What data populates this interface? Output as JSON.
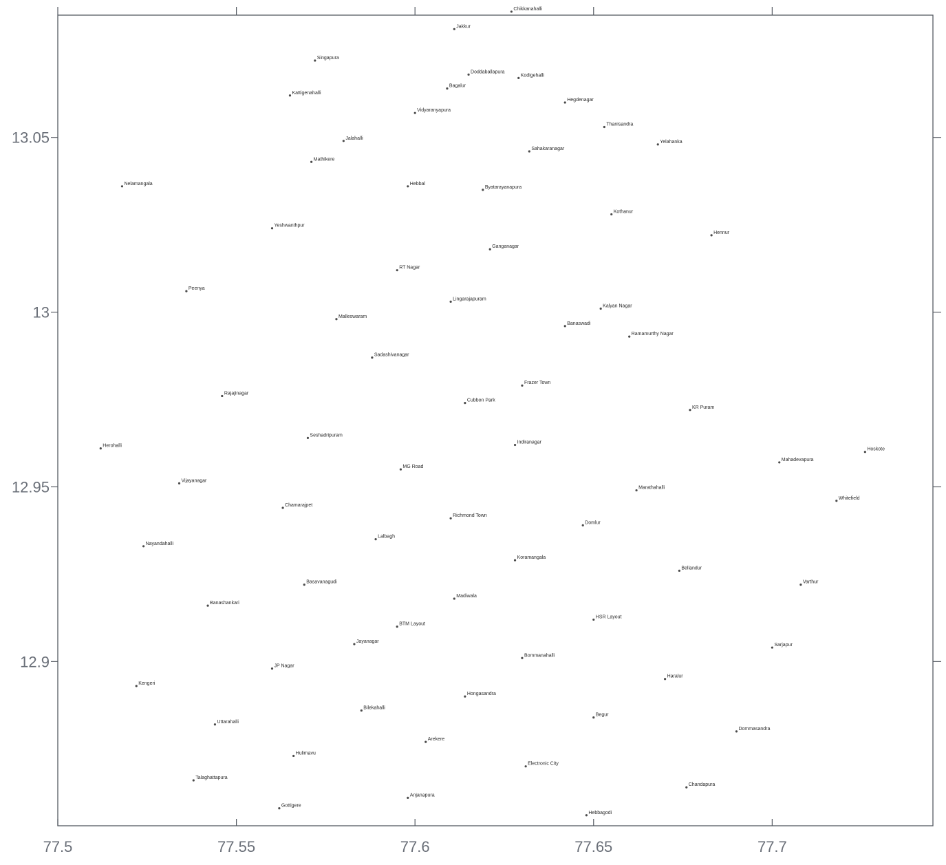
{
  "chart_data": {
    "type": "scatter",
    "title": "",
    "xlabel": "",
    "ylabel": "",
    "xlim": [
      77.5,
      77.745
    ],
    "ylim": [
      12.853,
      13.085
    ],
    "x_ticks": [
      77.5,
      77.55,
      77.6,
      77.65,
      77.7
    ],
    "x_tick_labels": [
      "77.5",
      "77.55",
      "77.6",
      "77.65",
      "77.7"
    ],
    "y_ticks": [
      12.9,
      12.95,
      13.0,
      13.05
    ],
    "y_tick_labels": [
      "12.9",
      "12.95",
      "13",
      "13.05"
    ],
    "grid": false,
    "legend": "none",
    "points": [
      {
        "x": 77.627,
        "y": 13.086,
        "label": "Chikkanahalli"
      },
      {
        "x": 77.611,
        "y": 13.081,
        "label": "Jakkur"
      },
      {
        "x": 77.572,
        "y": 13.072,
        "label": "Singapura"
      },
      {
        "x": 77.615,
        "y": 13.068,
        "label": "Doddaballapura"
      },
      {
        "x": 77.609,
        "y": 13.064,
        "label": "Bagalur"
      },
      {
        "x": 77.629,
        "y": 13.067,
        "label": "Kodigehalli"
      },
      {
        "x": 77.565,
        "y": 13.062,
        "label": "Kattigenahalli"
      },
      {
        "x": 77.642,
        "y": 13.06,
        "label": "Hegdenagar"
      },
      {
        "x": 77.6,
        "y": 13.057,
        "label": "Vidyaranyapura"
      },
      {
        "x": 77.653,
        "y": 13.053,
        "label": "Thanisandra"
      },
      {
        "x": 77.668,
        "y": 13.048,
        "label": "Yelahanka"
      },
      {
        "x": 77.58,
        "y": 13.049,
        "label": "Jalahalli"
      },
      {
        "x": 77.632,
        "y": 13.046,
        "label": "Sahakaranagar"
      },
      {
        "x": 77.571,
        "y": 13.043,
        "label": "Mathikere"
      },
      {
        "x": 77.598,
        "y": 13.036,
        "label": "Hebbal"
      },
      {
        "x": 77.619,
        "y": 13.035,
        "label": "Byatarayanapura"
      },
      {
        "x": 77.655,
        "y": 13.028,
        "label": "Kothanur"
      },
      {
        "x": 77.683,
        "y": 13.022,
        "label": "Hennur"
      },
      {
        "x": 77.56,
        "y": 13.024,
        "label": "Yeshwanthpur"
      },
      {
        "x": 77.621,
        "y": 13.018,
        "label": "Ganganagar"
      },
      {
        "x": 77.595,
        "y": 13.012,
        "label": "RT Nagar"
      },
      {
        "x": 77.536,
        "y": 13.006,
        "label": "Peenya"
      },
      {
        "x": 77.61,
        "y": 13.003,
        "label": "Lingarajapuram"
      },
      {
        "x": 77.652,
        "y": 13.001,
        "label": "Kalyan Nagar"
      },
      {
        "x": 77.578,
        "y": 12.998,
        "label": "Malleswaram"
      },
      {
        "x": 77.642,
        "y": 12.996,
        "label": "Banaswadi"
      },
      {
        "x": 77.66,
        "y": 12.993,
        "label": "Ramamurthy Nagar"
      },
      {
        "x": 77.588,
        "y": 12.987,
        "label": "Sadashivanagar"
      },
      {
        "x": 77.63,
        "y": 12.979,
        "label": "Frazer Town"
      },
      {
        "x": 77.546,
        "y": 12.976,
        "label": "Rajajinagar"
      },
      {
        "x": 77.614,
        "y": 12.974,
        "label": "Cubbon Park"
      },
      {
        "x": 77.677,
        "y": 12.972,
        "label": "KR Puram"
      },
      {
        "x": 77.57,
        "y": 12.964,
        "label": "Seshadripuram"
      },
      {
        "x": 77.628,
        "y": 12.962,
        "label": "Indiranagar"
      },
      {
        "x": 77.702,
        "y": 12.957,
        "label": "Mahadevapura"
      },
      {
        "x": 77.596,
        "y": 12.955,
        "label": "MG Road"
      },
      {
        "x": 77.534,
        "y": 12.951,
        "label": "Vijayanagar"
      },
      {
        "x": 77.662,
        "y": 12.949,
        "label": "Marathahalli"
      },
      {
        "x": 77.718,
        "y": 12.946,
        "label": "Whitefield"
      },
      {
        "x": 77.563,
        "y": 12.944,
        "label": "Chamarajpet"
      },
      {
        "x": 77.61,
        "y": 12.941,
        "label": "Richmond Town"
      },
      {
        "x": 77.647,
        "y": 12.939,
        "label": "Domlur"
      },
      {
        "x": 77.589,
        "y": 12.935,
        "label": "Lalbagh"
      },
      {
        "x": 77.524,
        "y": 12.933,
        "label": "Nayandahalli"
      },
      {
        "x": 77.628,
        "y": 12.929,
        "label": "Koramangala"
      },
      {
        "x": 77.674,
        "y": 12.926,
        "label": "Bellandur"
      },
      {
        "x": 77.569,
        "y": 12.922,
        "label": "Basavanagudi"
      },
      {
        "x": 77.611,
        "y": 12.918,
        "label": "Madiwala"
      },
      {
        "x": 77.542,
        "y": 12.916,
        "label": "Banashankari"
      },
      {
        "x": 77.65,
        "y": 12.912,
        "label": "HSR Layout"
      },
      {
        "x": 77.595,
        "y": 12.91,
        "label": "BTM Layout"
      },
      {
        "x": 77.583,
        "y": 12.905,
        "label": "Jayanagar"
      },
      {
        "x": 77.7,
        "y": 12.904,
        "label": "Sarjapur"
      },
      {
        "x": 77.63,
        "y": 12.901,
        "label": "Bommanahalli"
      },
      {
        "x": 77.56,
        "y": 12.898,
        "label": "JP Nagar"
      },
      {
        "x": 77.67,
        "y": 12.895,
        "label": "Haralur"
      },
      {
        "x": 77.522,
        "y": 12.893,
        "label": "Kengeri"
      },
      {
        "x": 77.614,
        "y": 12.89,
        "label": "Hongasandra"
      },
      {
        "x": 77.585,
        "y": 12.886,
        "label": "Bilekahalli"
      },
      {
        "x": 77.65,
        "y": 12.884,
        "label": "Begur"
      },
      {
        "x": 77.544,
        "y": 12.882,
        "label": "Uttarahalli"
      },
      {
        "x": 77.69,
        "y": 12.88,
        "label": "Dommasandra"
      },
      {
        "x": 77.603,
        "y": 12.877,
        "label": "Arekere"
      },
      {
        "x": 77.566,
        "y": 12.873,
        "label": "Hulimavu"
      },
      {
        "x": 77.631,
        "y": 12.87,
        "label": "Electronic City"
      },
      {
        "x": 77.538,
        "y": 12.866,
        "label": "Talaghattapura"
      },
      {
        "x": 77.676,
        "y": 12.864,
        "label": "Chandapura"
      },
      {
        "x": 77.598,
        "y": 12.861,
        "label": "Anjanapura"
      },
      {
        "x": 77.562,
        "y": 12.858,
        "label": "Gottigere"
      },
      {
        "x": 77.648,
        "y": 12.856,
        "label": "Hebbagodi"
      },
      {
        "x": 77.726,
        "y": 12.96,
        "label": "Hoskote"
      },
      {
        "x": 77.708,
        "y": 12.922,
        "label": "Varthur"
      },
      {
        "x": 77.512,
        "y": 12.961,
        "label": "Herohalli"
      },
      {
        "x": 77.518,
        "y": 13.036,
        "label": "Nelamangala"
      }
    ]
  }
}
